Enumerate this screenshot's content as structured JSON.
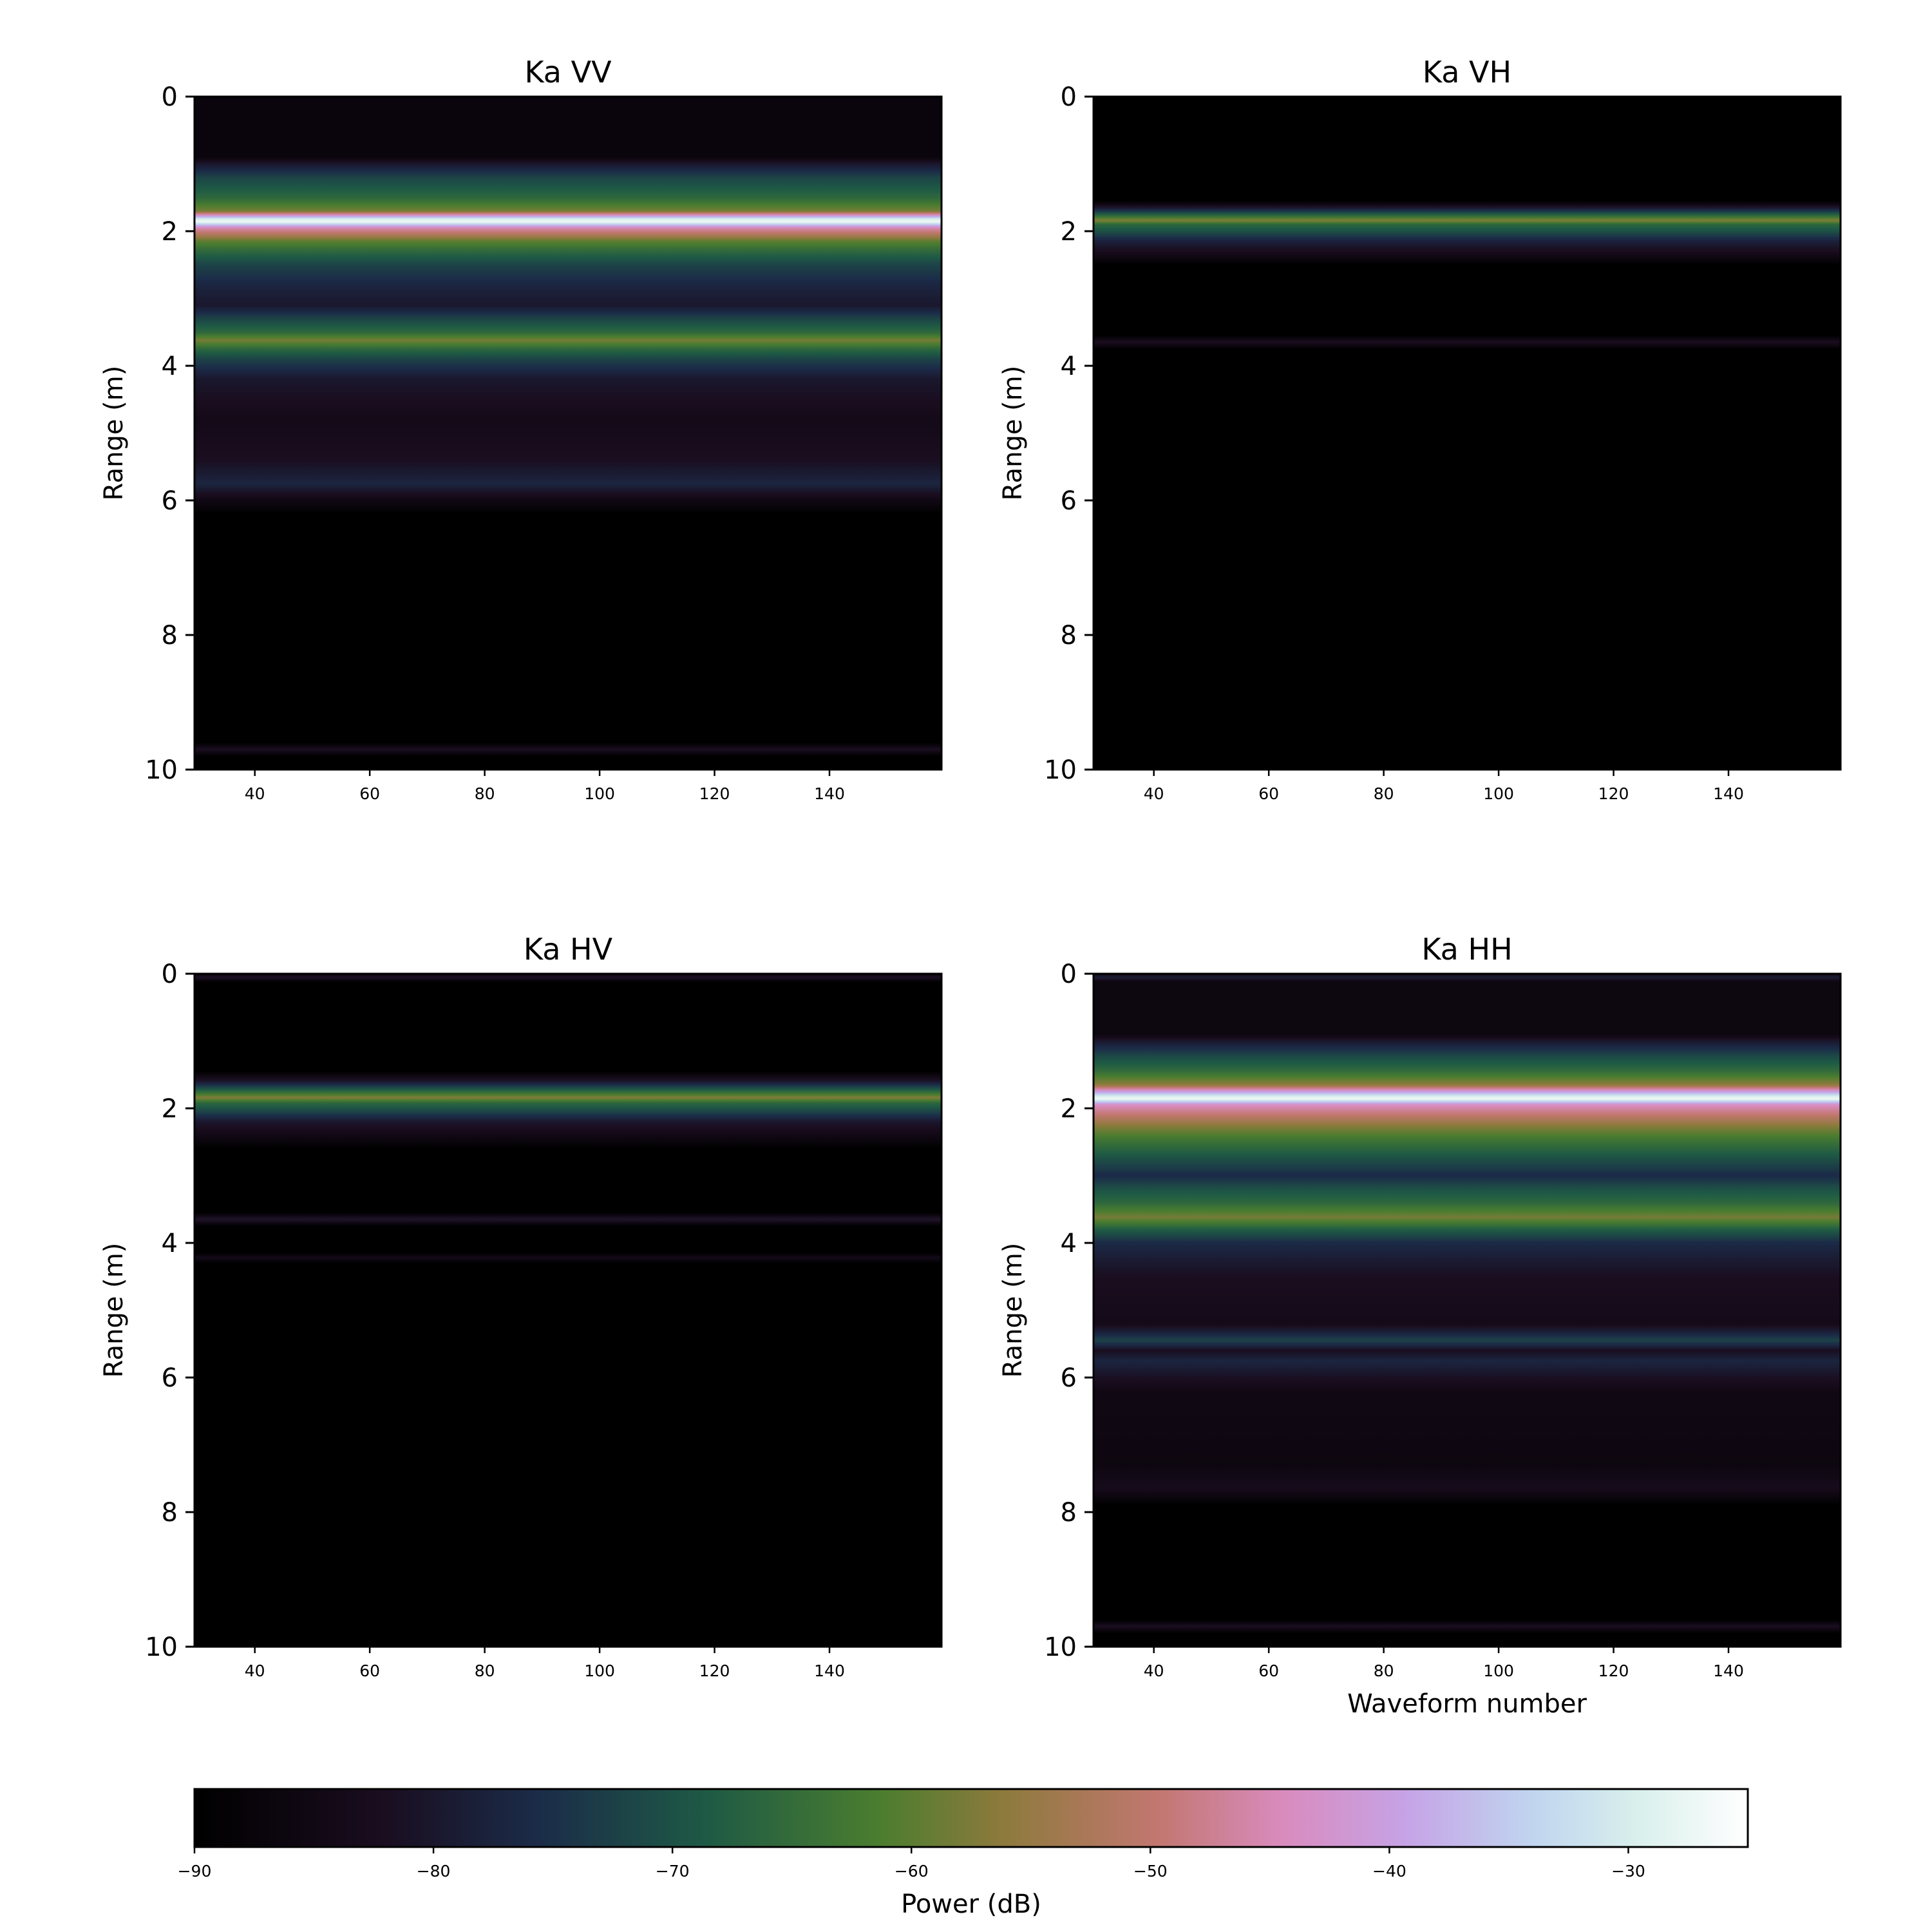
{
  "chart_data": [
    {
      "type": "heatmap",
      "title": "Ka VV",
      "xlabel": "",
      "ylabel": "Range (m)",
      "xlim": [
        29.5,
        159.5
      ],
      "ylim": [
        10,
        0
      ],
      "xticks": [
        40,
        60,
        80,
        100,
        120,
        140
      ],
      "yticks": [
        0,
        2,
        4,
        6,
        8,
        10
      ],
      "range_profile": [
        {
          "range": 0.0,
          "db": -87
        },
        {
          "range": 0.9,
          "db": -87
        },
        {
          "range": 1.0,
          "db": -80
        },
        {
          "range": 1.2,
          "db": -72
        },
        {
          "range": 1.5,
          "db": -66
        },
        {
          "range": 1.7,
          "db": -58
        },
        {
          "range": 1.82,
          "db": -30
        },
        {
          "range": 1.86,
          "db": -27
        },
        {
          "range": 1.95,
          "db": -45
        },
        {
          "range": 2.05,
          "db": -52
        },
        {
          "range": 2.15,
          "db": -60
        },
        {
          "range": 2.3,
          "db": -66
        },
        {
          "range": 2.5,
          "db": -72
        },
        {
          "range": 2.8,
          "db": -77
        },
        {
          "range": 3.1,
          "db": -80
        },
        {
          "range": 3.3,
          "db": -72
        },
        {
          "range": 3.5,
          "db": -66
        },
        {
          "range": 3.62,
          "db": -58
        },
        {
          "range": 3.75,
          "db": -66
        },
        {
          "range": 3.9,
          "db": -72
        },
        {
          "range": 4.2,
          "db": -80
        },
        {
          "range": 4.8,
          "db": -84
        },
        {
          "range": 5.4,
          "db": -82
        },
        {
          "range": 5.75,
          "db": -77
        },
        {
          "range": 6.0,
          "db": -85
        },
        {
          "range": 6.2,
          "db": -90
        },
        {
          "range": 9.6,
          "db": -90
        },
        {
          "range": 9.7,
          "db": -82
        },
        {
          "range": 9.8,
          "db": -90
        },
        {
          "range": 10.0,
          "db": -90
        }
      ]
    },
    {
      "type": "heatmap",
      "title": "Ka VH",
      "xlabel": "",
      "ylabel": "Range (m)",
      "xlim": [
        29.5,
        159.5
      ],
      "ylim": [
        10,
        0
      ],
      "xticks": [
        40,
        60,
        80,
        100,
        120,
        140
      ],
      "yticks": [
        0,
        2,
        4,
        6,
        8,
        10
      ],
      "range_profile": [
        {
          "range": 0.0,
          "db": -90
        },
        {
          "range": 1.55,
          "db": -90
        },
        {
          "range": 1.65,
          "db": -80
        },
        {
          "range": 1.8,
          "db": -62
        },
        {
          "range": 1.84,
          "db": -57
        },
        {
          "range": 1.9,
          "db": -66
        },
        {
          "range": 2.0,
          "db": -70
        },
        {
          "range": 2.15,
          "db": -78
        },
        {
          "range": 2.35,
          "db": -84
        },
        {
          "range": 2.5,
          "db": -90
        },
        {
          "range": 3.55,
          "db": -90
        },
        {
          "range": 3.65,
          "db": -82
        },
        {
          "range": 3.75,
          "db": -90
        },
        {
          "range": 10.0,
          "db": -90
        }
      ]
    },
    {
      "type": "heatmap",
      "title": "Ka HV",
      "xlabel": "",
      "ylabel": "Range (m)",
      "xlim": [
        29.5,
        159.5
      ],
      "ylim": [
        10,
        0
      ],
      "xticks": [
        40,
        60,
        80,
        100,
        120,
        140
      ],
      "yticks": [
        0,
        2,
        4,
        6,
        8,
        10
      ],
      "range_profile": [
        {
          "range": 0.0,
          "db": -90
        },
        {
          "range": 0.05,
          "db": -80
        },
        {
          "range": 0.12,
          "db": -90
        },
        {
          "range": 1.45,
          "db": -90
        },
        {
          "range": 1.6,
          "db": -80
        },
        {
          "range": 1.75,
          "db": -66
        },
        {
          "range": 1.84,
          "db": -57
        },
        {
          "range": 1.92,
          "db": -66
        },
        {
          "range": 2.05,
          "db": -72
        },
        {
          "range": 2.2,
          "db": -80
        },
        {
          "range": 2.45,
          "db": -86
        },
        {
          "range": 2.6,
          "db": -90
        },
        {
          "range": 3.55,
          "db": -90
        },
        {
          "range": 3.65,
          "db": -80
        },
        {
          "range": 3.75,
          "db": -90
        },
        {
          "range": 4.15,
          "db": -90
        },
        {
          "range": 4.22,
          "db": -84
        },
        {
          "range": 4.3,
          "db": -90
        },
        {
          "range": 10.0,
          "db": -90
        }
      ]
    },
    {
      "type": "heatmap",
      "title": "Ka HH",
      "xlabel": "Waveform number",
      "ylabel": "Range (m)",
      "xlim": [
        29.5,
        159.5
      ],
      "ylim": [
        10,
        0
      ],
      "xticks": [
        40,
        60,
        80,
        100,
        120,
        140
      ],
      "yticks": [
        0,
        2,
        4,
        6,
        8,
        10
      ],
      "range_profile": [
        {
          "range": 0.0,
          "db": -86
        },
        {
          "range": 0.05,
          "db": -78
        },
        {
          "range": 0.12,
          "db": -86
        },
        {
          "range": 0.9,
          "db": -86
        },
        {
          "range": 1.0,
          "db": -80
        },
        {
          "range": 1.2,
          "db": -72
        },
        {
          "range": 1.45,
          "db": -65
        },
        {
          "range": 1.65,
          "db": -56
        },
        {
          "range": 1.82,
          "db": -30
        },
        {
          "range": 1.86,
          "db": -27
        },
        {
          "range": 1.95,
          "db": -44
        },
        {
          "range": 2.1,
          "db": -50
        },
        {
          "range": 2.3,
          "db": -58
        },
        {
          "range": 2.5,
          "db": -64
        },
        {
          "range": 2.75,
          "db": -70
        },
        {
          "range": 3.0,
          "db": -76
        },
        {
          "range": 3.2,
          "db": -70
        },
        {
          "range": 3.4,
          "db": -66
        },
        {
          "range": 3.62,
          "db": -58
        },
        {
          "range": 3.8,
          "db": -68
        },
        {
          "range": 4.0,
          "db": -76
        },
        {
          "range": 4.5,
          "db": -82
        },
        {
          "range": 5.2,
          "db": -84
        },
        {
          "range": 5.45,
          "db": -72
        },
        {
          "range": 5.6,
          "db": -82
        },
        {
          "range": 5.75,
          "db": -77
        },
        {
          "range": 6.2,
          "db": -85
        },
        {
          "range": 7.3,
          "db": -86
        },
        {
          "range": 7.65,
          "db": -83
        },
        {
          "range": 7.9,
          "db": -90
        },
        {
          "range": 9.6,
          "db": -90
        },
        {
          "range": 9.7,
          "db": -82
        },
        {
          "range": 9.8,
          "db": -90
        },
        {
          "range": 10.0,
          "db": -90
        }
      ]
    }
  ],
  "colorbar": {
    "label": "Power (dB)",
    "range": [
      -90,
      -25
    ],
    "ticks": [
      -90,
      -80,
      -70,
      -60,
      -50,
      -40,
      -30
    ],
    "tick_labels": [
      "−90",
      "−80",
      "−70",
      "−60",
      "−50",
      "−40",
      "−30"
    ],
    "colormap": "cubehelix-like",
    "stops": [
      {
        "v": 0.0,
        "color": "#000000"
      },
      {
        "v": 0.12,
        "color": "#1a0d1f"
      },
      {
        "v": 0.22,
        "color": "#1b2b48"
      },
      {
        "v": 0.33,
        "color": "#1e5a45"
      },
      {
        "v": 0.44,
        "color": "#4a7d2f"
      },
      {
        "v": 0.52,
        "color": "#8d7a3c"
      },
      {
        "v": 0.62,
        "color": "#c27770"
      },
      {
        "v": 0.7,
        "color": "#d98bbd"
      },
      {
        "v": 0.78,
        "color": "#c6a3e6"
      },
      {
        "v": 0.86,
        "color": "#c0d4ef"
      },
      {
        "v": 0.93,
        "color": "#d9f0ec"
      },
      {
        "v": 1.0,
        "color": "#ffffff"
      }
    ]
  }
}
